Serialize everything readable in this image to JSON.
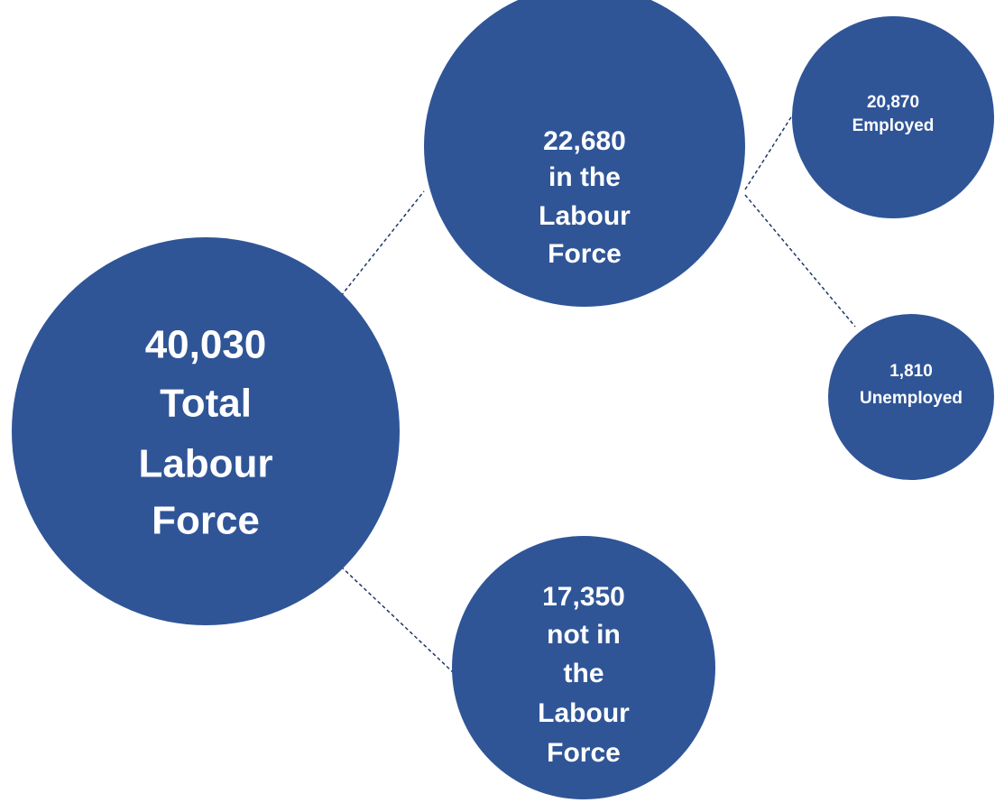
{
  "nodes": [
    {
      "lines": [
        "40,030",
        "Total",
        "Labour",
        "Force"
      ]
    },
    {
      "lines": [
        "22,680",
        "in the",
        "Labour",
        "Force"
      ]
    },
    {
      "lines": [
        "20,870",
        "Employed"
      ]
    },
    {
      "lines": [
        "1,810",
        "Unemployed"
      ]
    },
    {
      "lines": [
        "17,350",
        "not in",
        "the",
        "Labour",
        "Force"
      ]
    }
  ]
}
